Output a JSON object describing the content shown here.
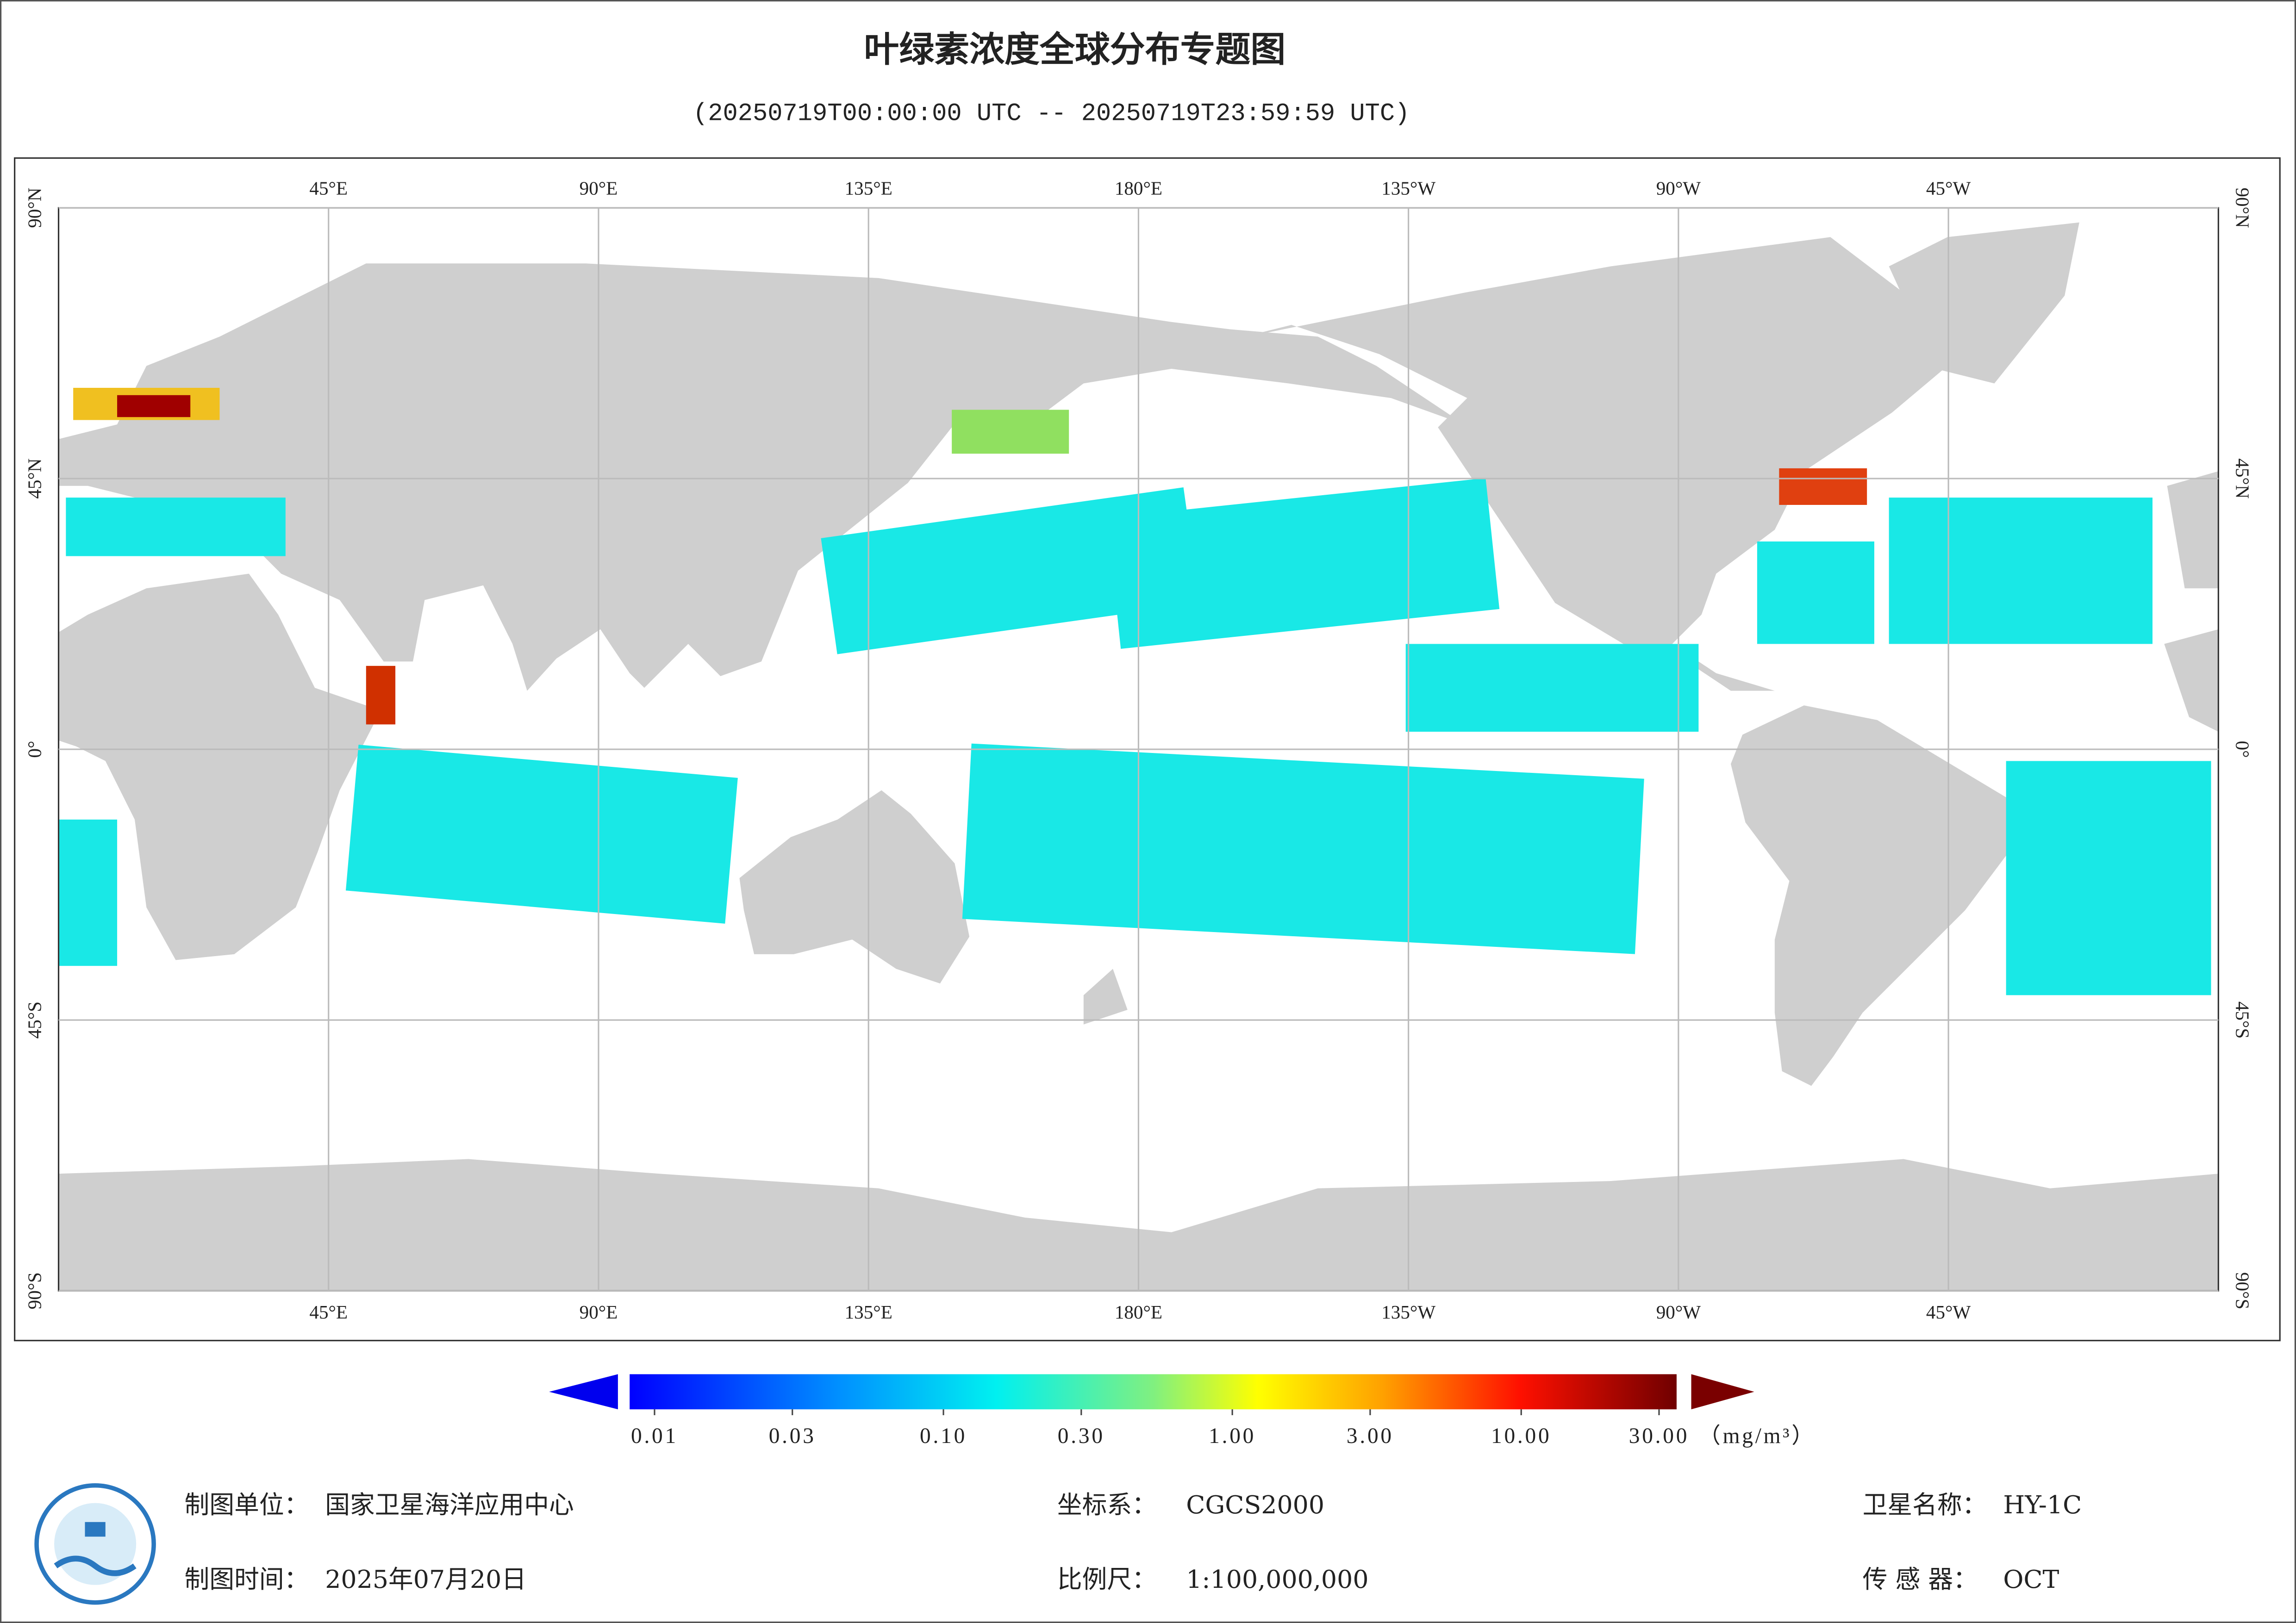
{
  "map": {
    "title": "叶绿素浓度全球分布专题图",
    "subtitle": "(20250719T00:00:00 UTC -- 20250719T23:59:59 UTC)",
    "lon_ticks": [
      {
        "value": 45,
        "label": "45°E"
      },
      {
        "value": 90,
        "label": "90°E"
      },
      {
        "value": 135,
        "label": "135°E"
      },
      {
        "value": 180,
        "label": "180°E"
      },
      {
        "value": 225,
        "label": "135°W"
      },
      {
        "value": 270,
        "label": "90°W"
      },
      {
        "value": 315,
        "label": "45°W"
      }
    ],
    "lat_ticks": [
      {
        "value": 90,
        "label": "90°N"
      },
      {
        "value": 45,
        "label": "45°N"
      },
      {
        "value": 0,
        "label": "0°"
      },
      {
        "value": -45,
        "label": "45°S"
      },
      {
        "value": -90,
        "label": "90°S"
      }
    ]
  },
  "colorbar": {
    "scale": "log",
    "ticks": [
      0.01,
      0.03,
      {
        "value": 0.1,
        "label": "0.10"
      },
      {
        "value": 0.3,
        "label": "0.30"
      },
      {
        "value": 1,
        "label": "1.00"
      },
      {
        "value": 3,
        "label": "3.00"
      },
      {
        "value": 10,
        "label": "10.00"
      },
      {
        "value": 30,
        "label": "30.00"
      }
    ],
    "unit": "（mg/m³）"
  },
  "footer": {
    "unit": {
      "label": "制图单位：",
      "value": "国家卫星海洋应用中心"
    },
    "time": {
      "label": "制图时间：",
      "value": "2025年07月20日"
    },
    "crs": {
      "label": "坐标系：",
      "value": "CGCS2000"
    },
    "scale": {
      "label": "比例尺：",
      "value": "1:100,000,000"
    },
    "satellite": {
      "label": "卫星名称：",
      "value": "HY-1C"
    },
    "sensor": {
      "label": "传 感 器：",
      "value": "OCT"
    }
  }
}
